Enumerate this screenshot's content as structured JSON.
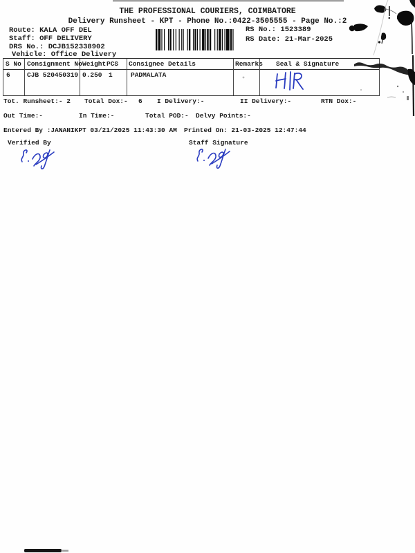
{
  "colors": {
    "ink_blue": "#2a3cc0",
    "scan_black": "#141414"
  },
  "header": {
    "company": "THE PROFESSIONAL COURIERS, COIMBATORE",
    "title": "Delivery Runsheet - KPT - Phone No.:0422-3505555 - Page No.:2"
  },
  "shipment_info": {
    "route": "Route: KALA OFF DEL",
    "staff": "Staff: OFF DELIVERY",
    "drs_no": "DRS No.: DCJB152338902",
    "vehicle": "Vehicle: Office Delivery",
    "rs_no": "RS No.: 1523389",
    "rs_date": "RS Date: 21-Mar-2025"
  },
  "table": {
    "headers": {
      "s_no": "S No",
      "consignment_no": "Consignment No",
      "weight": "Weight",
      "pcs": "PCS",
      "consignee": "Consignee Details",
      "remarks": "Remarks",
      "seal": "Seal & Signature"
    },
    "rows": [
      {
        "s_no": "6",
        "consignment_no": "CJB 520450319",
        "weight": "0.250",
        "pcs": "1",
        "consignee": "PADMALATA",
        "remarks": "",
        "seal_handwriting": "H|R"
      }
    ]
  },
  "summary": {
    "tot_runsheet": "Tot. Runsheet:- 2",
    "total_dox_label": "Total Dox:-",
    "total_dox_value": "6",
    "i_delivery": "I Delivery:-",
    "ii_delivery": "II Delivery:-",
    "rtn_dox": "RTN Dox:-",
    "out_time": "Out Time:-",
    "in_time": "In Time:-",
    "total_pod": "Total POD:-",
    "delvy_points": "Delvy Points:-",
    "entered_by": "Entered By :JANANIKPT 03/21/2025 11:43:30 AM",
    "printed_on": "Printed On: 21-03-2025 12:47:44"
  },
  "signature_block": {
    "verified_by_label": "Verified By",
    "staff_signature_label": "Staff Signature",
    "verified_signature_text": "S.Jai",
    "staff_signature_text": "S.Jai"
  }
}
